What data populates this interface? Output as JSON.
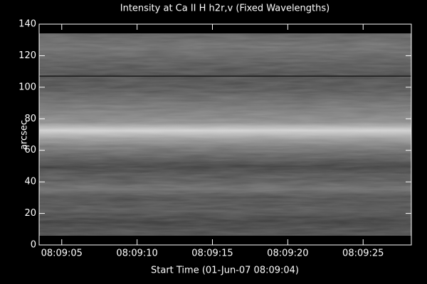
{
  "chart_data": {
    "type": "image",
    "title": "Intensity at Ca II H h2r,v (Fixed Wavelengths)",
    "x_label": "Start Time (01-Jun-07 08:09:04)",
    "y_label": "arcsec",
    "xlim": [
      -0.5,
      24.2
    ],
    "xticks": [
      {
        "value": 1,
        "label": "08:09:05"
      },
      {
        "value": 6,
        "label": "08:09:10"
      },
      {
        "value": 11,
        "label": "08:09:15"
      },
      {
        "value": 16,
        "label": "08:09:20"
      },
      {
        "value": 21,
        "label": "08:09:25"
      }
    ],
    "ylim": [
      0,
      140
    ],
    "yticks": [
      0,
      20,
      40,
      60,
      80,
      100,
      120,
      140
    ]
  }
}
